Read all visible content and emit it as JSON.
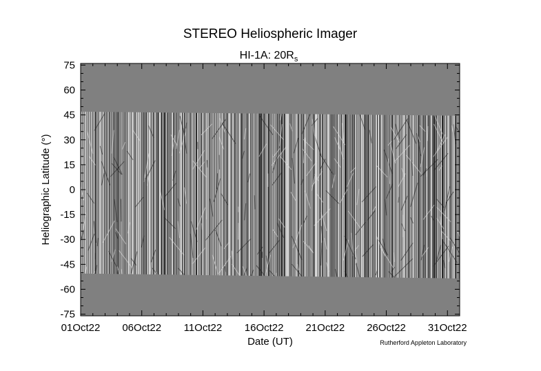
{
  "chart_data": {
    "type": "heatmap",
    "title": "STEREO Heliospheric Imager",
    "subtitle_main": "HI-1A: 20R",
    "subtitle_sub": "s",
    "xlabel": "Date (UT)",
    "ylabel": "Heliographic Latitude (°)",
    "x_ticks": [
      "01Oct22",
      "06Oct22",
      "11Oct22",
      "16Oct22",
      "21Oct22",
      "26Oct22",
      "31Oct22"
    ],
    "x_tick_days": [
      1,
      6,
      11,
      16,
      21,
      26,
      31
    ],
    "xlim": [
      1,
      32
    ],
    "ylim": [
      -76,
      76
    ],
    "y_ticks": [
      75,
      60,
      45,
      30,
      15,
      0,
      -15,
      -30,
      -45,
      -60,
      -75
    ],
    "data_extent_lat_top": [
      47,
      44.5
    ],
    "data_extent_lat_bottom": [
      -50.5,
      -53.5
    ],
    "colorscale": "grayscale",
    "credit": "Rutherford Appleton Laboratory",
    "colors": {
      "background": "#808080",
      "foreground": "#000000"
    }
  }
}
